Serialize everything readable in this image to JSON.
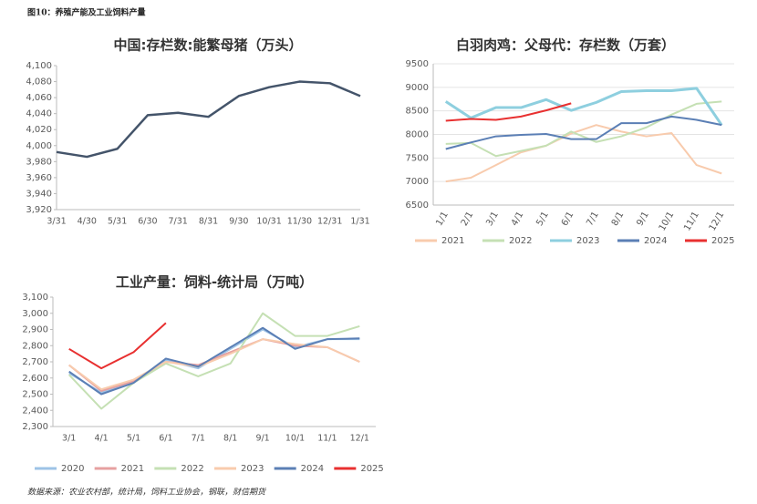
{
  "title": "图10：养殖产能及工业饲料产量",
  "source": "数据来源：农业农村部，统计局，饲料工业协会，钢联，财信期货",
  "chart_data": [
    {
      "type": "line",
      "title": "中国:存栏数:能繁母猪（万头）",
      "categories": [
        "3/31",
        "4/30",
        "5/31",
        "6/30",
        "7/31",
        "8/31",
        "9/30",
        "10/31",
        "11/30",
        "12/31",
        "1/31"
      ],
      "values": [
        3992,
        3986,
        3996,
        4038,
        4041,
        4036,
        4062,
        4073,
        4080,
        4078,
        4062
      ],
      "color": "#44546a",
      "ylim": [
        3920,
        4100
      ],
      "yticks": [
        {
          "value": 3920,
          "label": "3,920"
        },
        {
          "value": 3940,
          "label": "3,940"
        },
        {
          "value": 3960,
          "label": "3,960"
        },
        {
          "value": 3980,
          "label": "3,980"
        },
        {
          "value": 4000,
          "label": "4,000"
        },
        {
          "value": 4020,
          "label": "4,020"
        },
        {
          "value": 4040,
          "label": "4,040"
        },
        {
          "value": 4060,
          "label": "4,060"
        },
        {
          "value": 4080,
          "label": "4,080"
        },
        {
          "value": 4100,
          "label": "4,100"
        }
      ]
    },
    {
      "type": "line",
      "title": "白羽肉鸡：父母代：存栏数（万套）",
      "categories": [
        "1/1",
        "2/1",
        "3/1",
        "4/1",
        "5/1",
        "6/1",
        "7/1",
        "8/1",
        "9/1",
        "10/1",
        "11/1",
        "12/1"
      ],
      "series": [
        {
          "name": "2021",
          "color": "#f8cbad",
          "values": [
            7000,
            7080,
            7350,
            7620,
            7760,
            8020,
            8200,
            8060,
            7960,
            8030,
            7350,
            7170
          ]
        },
        {
          "name": "2022",
          "color": "#c5e0b4",
          "values": [
            7800,
            7820,
            7540,
            7650,
            7760,
            8060,
            7840,
            7960,
            8150,
            8420,
            8650,
            8700
          ]
        },
        {
          "name": "2023",
          "color": "#8ecfdf",
          "values": [
            8700,
            8350,
            8570,
            8570,
            8740,
            8510,
            8680,
            8910,
            8930,
            8930,
            8980,
            8200
          ]
        },
        {
          "name": "2024",
          "color": "#5b7fb5",
          "values": [
            7690,
            7830,
            7960,
            7990,
            8010,
            7900,
            7900,
            8240,
            8240,
            8380,
            8310,
            8200
          ]
        },
        {
          "name": "2025",
          "color": "#e83030",
          "values": [
            8290,
            8330,
            8310,
            8380,
            8510,
            8660,
            null,
            null,
            null,
            null,
            null,
            null
          ]
        }
      ],
      "ylim": [
        6500,
        9500
      ],
      "yticks": [
        6500,
        7000,
        7500,
        8000,
        8500,
        9000,
        9500
      ],
      "grid": true
    },
    {
      "type": "line",
      "title": "工业产量：饲料-统计局（万吨）",
      "categories": [
        "3/1",
        "4/1",
        "5/1",
        "6/1",
        "7/1",
        "8/1",
        "9/1",
        "10/1",
        "11/1",
        "12/1"
      ],
      "series": [
        {
          "name": "2020",
          "color": "#9dc3e6",
          "values": [
            2630,
            2510,
            2580,
            2710,
            2660,
            2780,
            2900,
            2790,
            2840,
            2840
          ]
        },
        {
          "name": "2021",
          "color": "#e6a0a0",
          "values": [
            2680,
            2520,
            2580,
            2700,
            2680,
            2760,
            2840,
            2800,
            2790,
            2700
          ]
        },
        {
          "name": "2022",
          "color": "#c5e0b4",
          "values": [
            2620,
            2410,
            2570,
            2690,
            2610,
            2690,
            3000,
            2860,
            2860,
            2920
          ]
        },
        {
          "name": "2023",
          "color": "#f8cbad",
          "values": [
            2680,
            2530,
            2590,
            2700,
            2670,
            2750,
            2840,
            2810,
            2790,
            2700
          ]
        },
        {
          "name": "2024",
          "color": "#5b7fb5",
          "values": [
            2640,
            2500,
            2570,
            2720,
            2670,
            2790,
            2910,
            2780,
            2840,
            2845
          ]
        },
        {
          "name": "2025",
          "color": "#e83030",
          "values": [
            2780,
            2660,
            2760,
            2940,
            null,
            null,
            null,
            null,
            null,
            null
          ]
        }
      ],
      "ylim": [
        2300,
        3100
      ],
      "yticks": [
        {
          "value": 2300,
          "label": "2,300"
        },
        {
          "value": 2400,
          "label": "2,400"
        },
        {
          "value": 2500,
          "label": "2,500"
        },
        {
          "value": 2600,
          "label": "2,600"
        },
        {
          "value": 2700,
          "label": "2,700"
        },
        {
          "value": 2800,
          "label": "2,800"
        },
        {
          "value": 2900,
          "label": "2,900"
        },
        {
          "value": 3000,
          "label": "3,000"
        },
        {
          "value": 3100,
          "label": "3,100"
        }
      ]
    }
  ]
}
